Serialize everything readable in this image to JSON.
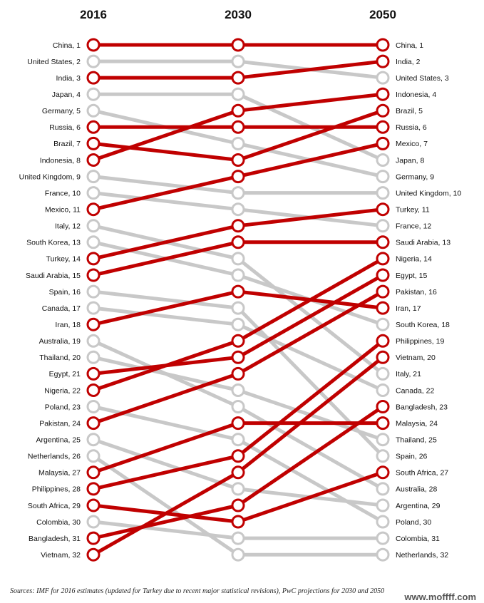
{
  "chart_data": {
    "type": "slope",
    "title": "",
    "columns": [
      "2016",
      "2030",
      "2050"
    ],
    "highlight_color": "#c00000",
    "muted_color": "#c8c8c8",
    "label_2016": [
      "China, 1",
      "United States, 2",
      "India, 3",
      "Japan, 4",
      "Germany, 5",
      "Russia, 6",
      "Brazil, 7",
      "Indonesia, 8",
      "United Kingdom, 9",
      "France, 10",
      "Mexico, 11",
      "Italy, 12",
      "South Korea, 13",
      "Turkey, 14",
      "Saudi Arabia, 15",
      "Spain, 16",
      "Canada, 17",
      "Iran, 18",
      "Australia, 19",
      "Thailand, 20",
      "Egypt, 21",
      "Nigeria, 22",
      "Poland, 23",
      "Pakistan, 24",
      "Argentina, 25",
      "Netherlands, 26",
      "Malaysia, 27",
      "Philippines, 28",
      "South Africa, 29",
      "Colombia, 30",
      "Bangladesh, 31",
      "Vietnam, 32"
    ],
    "label_2050": [
      "China, 1",
      "India, 2",
      "United States, 3",
      "Indonesia, 4",
      "Brazil, 5",
      "Russia, 6",
      "Mexico, 7",
      "Japan, 8",
      "Germany, 9",
      "United Kingdom, 10",
      "Turkey, 11",
      "France, 12",
      "Saudi Arabia, 13",
      "Nigeria, 14",
      "Egypt, 15",
      "Pakistan, 16",
      "Iran, 17",
      "South Korea, 18",
      "Philippines, 19",
      "Vietnam, 20",
      "Italy, 21",
      "Canada, 22",
      "Bangladesh, 23",
      "Malaysia, 24",
      "Thailand, 25",
      "Spain, 26",
      "South Africa, 27",
      "Australia, 28",
      "Argentina, 29",
      "Poland, 30",
      "Colombia, 31",
      "Netherlands, 32"
    ],
    "rankings": [
      {
        "r2016": 1,
        "r2030": 1,
        "r2050": 1,
        "highlight": true
      },
      {
        "r2016": 2,
        "r2030": 2,
        "r2050": 3,
        "highlight": false
      },
      {
        "r2016": 3,
        "r2030": 3,
        "r2050": 2,
        "highlight": true
      },
      {
        "r2016": 4,
        "r2030": 4,
        "r2050": 8,
        "highlight": false
      },
      {
        "r2016": 5,
        "r2030": 7,
        "r2050": 9,
        "highlight": false
      },
      {
        "r2016": 6,
        "r2030": 6,
        "r2050": 6,
        "highlight": true
      },
      {
        "r2016": 7,
        "r2030": 8,
        "r2050": 5,
        "highlight": true
      },
      {
        "r2016": 8,
        "r2030": 5,
        "r2050": 4,
        "highlight": true
      },
      {
        "r2016": 9,
        "r2030": 10,
        "r2050": 10,
        "highlight": false
      },
      {
        "r2016": 10,
        "r2030": 11,
        "r2050": 12,
        "highlight": false
      },
      {
        "r2016": 11,
        "r2030": 9,
        "r2050": 7,
        "highlight": true
      },
      {
        "r2016": 12,
        "r2030": 14,
        "r2050": 21,
        "highlight": false
      },
      {
        "r2016": 13,
        "r2030": 15,
        "r2050": 18,
        "highlight": false
      },
      {
        "r2016": 14,
        "r2030": 12,
        "r2050": 11,
        "highlight": true
      },
      {
        "r2016": 15,
        "r2030": 13,
        "r2050": 13,
        "highlight": true
      },
      {
        "r2016": 16,
        "r2030": 17,
        "r2050": 26,
        "highlight": false
      },
      {
        "r2016": 17,
        "r2030": 18,
        "r2050": 22,
        "highlight": false
      },
      {
        "r2016": 18,
        "r2030": 16,
        "r2050": 17,
        "highlight": true
      },
      {
        "r2016": 19,
        "r2030": 23,
        "r2050": 28,
        "highlight": false
      },
      {
        "r2016": 20,
        "r2030": 22,
        "r2050": 25,
        "highlight": false
      },
      {
        "r2016": 21,
        "r2030": 20,
        "r2050": 15,
        "highlight": true
      },
      {
        "r2016": 22,
        "r2030": 19,
        "r2050": 14,
        "highlight": true
      },
      {
        "r2016": 23,
        "r2030": 25,
        "r2050": 30,
        "highlight": false
      },
      {
        "r2016": 24,
        "r2030": 21,
        "r2050": 16,
        "highlight": true
      },
      {
        "r2016": 25,
        "r2030": 28,
        "r2050": 29,
        "highlight": false
      },
      {
        "r2016": 26,
        "r2030": 32,
        "r2050": 32,
        "highlight": false
      },
      {
        "r2016": 27,
        "r2030": 24,
        "r2050": 24,
        "highlight": true
      },
      {
        "r2016": 28,
        "r2030": 26,
        "r2050": 19,
        "highlight": true
      },
      {
        "r2016": 29,
        "r2030": 30,
        "r2050": 27,
        "highlight": true
      },
      {
        "r2016": 30,
        "r2030": 31,
        "r2050": 31,
        "highlight": false
      },
      {
        "r2016": 31,
        "r2030": 29,
        "r2050": 23,
        "highlight": true
      },
      {
        "r2016": 32,
        "r2030": 27,
        "r2050": 20,
        "highlight": true
      }
    ],
    "source": "Sources: IMF for 2016 estimates (updated for Turkey due to recent major statistical revisions), PwC projections for 2030 and 2050"
  },
  "watermark": "www.moffff.com"
}
